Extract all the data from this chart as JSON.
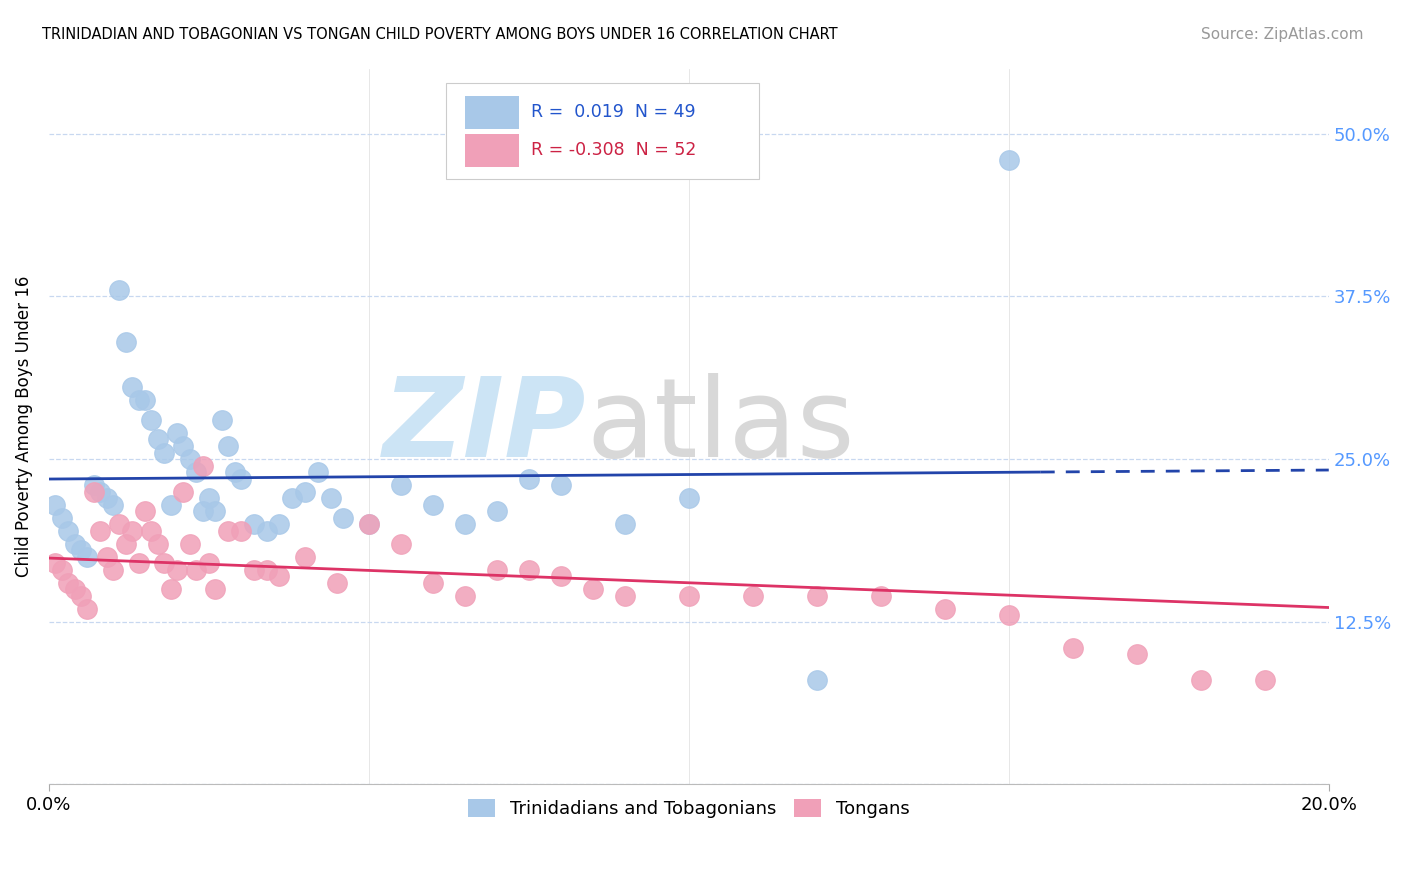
{
  "title": "TRINIDADIAN AND TOBAGONIAN VS TONGAN CHILD POVERTY AMONG BOYS UNDER 16 CORRELATION CHART",
  "source": "Source: ZipAtlas.com",
  "ylabel": "Child Poverty Among Boys Under 16",
  "xlim": [
    0.0,
    0.2
  ],
  "ylim": [
    0.0,
    0.55
  ],
  "yticks": [
    0.0,
    0.125,
    0.25,
    0.375,
    0.5
  ],
  "ytick_labels": [
    "",
    "12.5%",
    "25.0%",
    "37.5%",
    "50.0%"
  ],
  "xtick_left": "0.0%",
  "xtick_right": "20.0%",
  "legend_bottom_blue": "Trinidadians and Tobagonians",
  "legend_bottom_pink": "Tongans",
  "blue_color": "#a8c8e8",
  "pink_color": "#f0a0b8",
  "line_blue_color": "#2244aa",
  "line_pink_color": "#dd3366",
  "grid_color": "#c8d8f0",
  "blue_R": 0.019,
  "blue_N": 49,
  "pink_R": -0.308,
  "pink_N": 52,
  "blue_scatter_x": [
    0.001,
    0.002,
    0.003,
    0.004,
    0.005,
    0.006,
    0.007,
    0.008,
    0.009,
    0.01,
    0.011,
    0.012,
    0.013,
    0.014,
    0.015,
    0.016,
    0.017,
    0.018,
    0.019,
    0.02,
    0.021,
    0.022,
    0.023,
    0.024,
    0.025,
    0.026,
    0.027,
    0.028,
    0.029,
    0.03,
    0.032,
    0.034,
    0.036,
    0.038,
    0.04,
    0.042,
    0.044,
    0.046,
    0.05,
    0.055,
    0.06,
    0.065,
    0.07,
    0.075,
    0.08,
    0.09,
    0.1,
    0.12,
    0.15
  ],
  "blue_scatter_y": [
    0.215,
    0.205,
    0.195,
    0.185,
    0.18,
    0.175,
    0.23,
    0.225,
    0.22,
    0.215,
    0.38,
    0.34,
    0.305,
    0.295,
    0.295,
    0.28,
    0.265,
    0.255,
    0.215,
    0.27,
    0.26,
    0.25,
    0.24,
    0.21,
    0.22,
    0.21,
    0.28,
    0.26,
    0.24,
    0.235,
    0.2,
    0.195,
    0.2,
    0.22,
    0.225,
    0.24,
    0.22,
    0.205,
    0.2,
    0.23,
    0.215,
    0.2,
    0.21,
    0.235,
    0.23,
    0.2,
    0.22,
    0.08,
    0.48
  ],
  "pink_scatter_x": [
    0.001,
    0.002,
    0.003,
    0.004,
    0.005,
    0.006,
    0.007,
    0.008,
    0.009,
    0.01,
    0.011,
    0.012,
    0.013,
    0.014,
    0.015,
    0.016,
    0.017,
    0.018,
    0.019,
    0.02,
    0.021,
    0.022,
    0.023,
    0.024,
    0.025,
    0.026,
    0.028,
    0.03,
    0.032,
    0.034,
    0.036,
    0.04,
    0.045,
    0.05,
    0.055,
    0.06,
    0.065,
    0.07,
    0.075,
    0.08,
    0.085,
    0.09,
    0.1,
    0.11,
    0.12,
    0.13,
    0.14,
    0.15,
    0.16,
    0.17,
    0.18,
    0.19
  ],
  "pink_scatter_y": [
    0.17,
    0.165,
    0.155,
    0.15,
    0.145,
    0.135,
    0.225,
    0.195,
    0.175,
    0.165,
    0.2,
    0.185,
    0.195,
    0.17,
    0.21,
    0.195,
    0.185,
    0.17,
    0.15,
    0.165,
    0.225,
    0.185,
    0.165,
    0.245,
    0.17,
    0.15,
    0.195,
    0.195,
    0.165,
    0.165,
    0.16,
    0.175,
    0.155,
    0.2,
    0.185,
    0.155,
    0.145,
    0.165,
    0.165,
    0.16,
    0.15,
    0.145,
    0.145,
    0.145,
    0.145,
    0.145,
    0.135,
    0.13,
    0.105,
    0.1,
    0.08,
    0.08
  ]
}
